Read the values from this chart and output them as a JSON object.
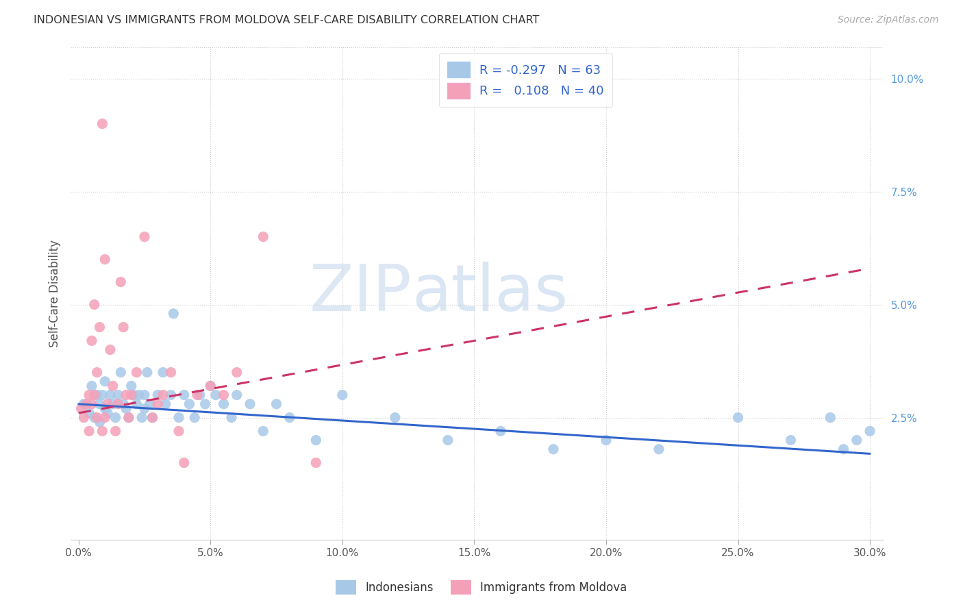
{
  "title": "INDONESIAN VS IMMIGRANTS FROM MOLDOVA SELF-CARE DISABILITY CORRELATION CHART",
  "source": "Source: ZipAtlas.com",
  "ylabel": "Self-Care Disability",
  "xlim": [
    -0.003,
    0.305
  ],
  "ylim": [
    -0.002,
    0.107
  ],
  "xticks": [
    0.0,
    0.05,
    0.1,
    0.15,
    0.2,
    0.25,
    0.3
  ],
  "xtick_labels": [
    "0.0%",
    "5.0%",
    "10.0%",
    "15.0%",
    "20.0%",
    "25.0%",
    "30.0%"
  ],
  "yticks_right": [
    0.025,
    0.05,
    0.075,
    0.1
  ],
  "ytick_labels_right": [
    "2.5%",
    "5.0%",
    "7.5%",
    "10.0%"
  ],
  "blue_color": "#a8c8e8",
  "pink_color": "#f4a0b8",
  "blue_line_color": "#3366cc",
  "pink_line_color": "#cc3366",
  "legend_R_blue": "-0.297",
  "legend_N_blue": "63",
  "legend_R_pink": "0.108",
  "legend_N_pink": "40",
  "watermark_zip": "ZIP",
  "watermark_atlas": "atlas",
  "blue_scatter_x": [
    0.002,
    0.004,
    0.005,
    0.006,
    0.007,
    0.008,
    0.008,
    0.009,
    0.01,
    0.01,
    0.011,
    0.012,
    0.013,
    0.014,
    0.015,
    0.016,
    0.017,
    0.018,
    0.019,
    0.02,
    0.021,
    0.022,
    0.023,
    0.024,
    0.025,
    0.025,
    0.026,
    0.027,
    0.028,
    0.03,
    0.032,
    0.033,
    0.035,
    0.036,
    0.038,
    0.04,
    0.042,
    0.044,
    0.046,
    0.048,
    0.05,
    0.052,
    0.055,
    0.058,
    0.06,
    0.065,
    0.07,
    0.075,
    0.08,
    0.09,
    0.1,
    0.12,
    0.14,
    0.16,
    0.18,
    0.2,
    0.22,
    0.25,
    0.27,
    0.285,
    0.29,
    0.295,
    0.3
  ],
  "blue_scatter_y": [
    0.028,
    0.026,
    0.032,
    0.025,
    0.03,
    0.028,
    0.024,
    0.03,
    0.027,
    0.033,
    0.026,
    0.03,
    0.028,
    0.025,
    0.03,
    0.035,
    0.028,
    0.027,
    0.025,
    0.032,
    0.03,
    0.028,
    0.03,
    0.025,
    0.03,
    0.027,
    0.035,
    0.028,
    0.025,
    0.03,
    0.035,
    0.028,
    0.03,
    0.048,
    0.025,
    0.03,
    0.028,
    0.025,
    0.03,
    0.028,
    0.032,
    0.03,
    0.028,
    0.025,
    0.03,
    0.028,
    0.022,
    0.028,
    0.025,
    0.02,
    0.03,
    0.025,
    0.02,
    0.022,
    0.018,
    0.02,
    0.018,
    0.025,
    0.02,
    0.025,
    0.018,
    0.02,
    0.022
  ],
  "pink_scatter_x": [
    0.001,
    0.002,
    0.003,
    0.004,
    0.004,
    0.005,
    0.005,
    0.006,
    0.006,
    0.007,
    0.007,
    0.008,
    0.009,
    0.009,
    0.01,
    0.01,
    0.011,
    0.012,
    0.013,
    0.014,
    0.015,
    0.016,
    0.017,
    0.018,
    0.019,
    0.02,
    0.022,
    0.025,
    0.028,
    0.03,
    0.032,
    0.035,
    0.038,
    0.04,
    0.045,
    0.05,
    0.055,
    0.06,
    0.07,
    0.09
  ],
  "pink_scatter_y": [
    0.027,
    0.025,
    0.028,
    0.03,
    0.022,
    0.028,
    0.042,
    0.03,
    0.05,
    0.035,
    0.025,
    0.045,
    0.022,
    0.09,
    0.025,
    0.06,
    0.028,
    0.04,
    0.032,
    0.022,
    0.028,
    0.055,
    0.045,
    0.03,
    0.025,
    0.03,
    0.035,
    0.065,
    0.025,
    0.028,
    0.03,
    0.035,
    0.022,
    0.015,
    0.03,
    0.032,
    0.03,
    0.035,
    0.065,
    0.015
  ],
  "blue_trendline_x0": 0.0,
  "blue_trendline_y0": 0.028,
  "blue_trendline_x1": 0.3,
  "blue_trendline_y1": 0.017,
  "pink_trendline_x0": 0.0,
  "pink_trendline_y0": 0.026,
  "pink_trendline_x1": 0.3,
  "pink_trendline_y1": 0.058
}
